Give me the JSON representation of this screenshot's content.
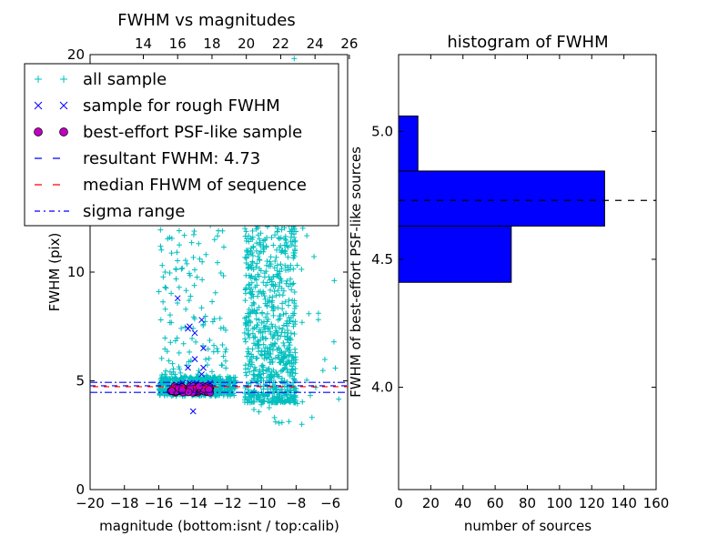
{
  "chart_data": [
    {
      "type": "scatter",
      "title": "FWHM vs magnitudes",
      "xlabel": "magnitude (bottom:isnt / top:calib)",
      "ylabel": "FWHM (pix)",
      "xlim": [
        -20,
        -5
      ],
      "ylim": [
        0,
        20
      ],
      "xticks": [
        "−20",
        "−18",
        "−16",
        "−14",
        "−12",
        "−10",
        "−8",
        "−6"
      ],
      "xtick_values": [
        -20,
        -18,
        -16,
        -14,
        -12,
        -10,
        -8,
        -6
      ],
      "top_xticks": [
        "14",
        "16",
        "18",
        "20",
        "22",
        "24",
        "26"
      ],
      "top_xtick_values": [
        -16.9,
        -14.9,
        -12.9,
        -10.9,
        -8.9,
        -6.9,
        -4.9
      ],
      "yticks": [
        "0",
        "5",
        "10",
        "20"
      ],
      "ytick_values": [
        0,
        5,
        10,
        20
      ],
      "legend_position": "upper-left",
      "series": [
        {
          "name": "all sample",
          "marker": "+",
          "color": "#00bfbf",
          "clusters": [
            {
              "x_range": [
                -16.0,
                -11.5
              ],
              "y_range": [
                4.3,
                5.2
              ],
              "count": 520
            },
            {
              "x_range": [
                -11.0,
                -8.0
              ],
              "y_range": [
                4.0,
                15.0
              ],
              "count": 900
            },
            {
              "x_range": [
                -16.0,
                -12.0
              ],
              "y_range": [
                5.0,
                13.0
              ],
              "count": 160
            },
            {
              "x_range": [
                -11.0,
                -5.5
              ],
              "y_range": [
                3.0,
                20.0
              ],
              "count": 90
            }
          ]
        },
        {
          "name": "sample for rough FWHM",
          "marker": "x",
          "color": "#0000ff",
          "points": [
            [
              -14.9,
              8.8
            ],
            [
              -14.3,
              7.4
            ],
            [
              -14.2,
              7.5
            ],
            [
              -13.9,
              7.2
            ],
            [
              -13.5,
              7.8
            ],
            [
              -13.4,
              6.5
            ],
            [
              -13.4,
              5.6
            ],
            [
              -13.5,
              5.3
            ],
            [
              -14.0,
              3.6
            ],
            [
              -15.0,
              4.8
            ],
            [
              -14.6,
              4.9
            ],
            [
              -14.2,
              4.9
            ],
            [
              -13.8,
              4.9
            ],
            [
              -13.4,
              4.8
            ],
            [
              -13.0,
              4.9
            ],
            [
              -14.3,
              5.6
            ],
            [
              -13.9,
              6.0
            ]
          ]
        },
        {
          "name": "best-effort PSF-like sample",
          "marker": "o",
          "color": "#bf00bf",
          "x_range": [
            -15.3,
            -13.0
          ],
          "y_range": [
            4.45,
            4.75
          ],
          "count": 60
        }
      ],
      "lines": [
        {
          "name": "resultant FWHM: 4.73",
          "y": 4.73,
          "style": "dashed",
          "color": "#0000ff"
        },
        {
          "name": "median FHWM of sequence",
          "y": 4.73,
          "style": "dashed",
          "color": "#ff0000"
        },
        {
          "name": "sigma range",
          "y": [
            4.47,
            4.93
          ],
          "style": "dashdot",
          "color": "#0000ff"
        }
      ]
    },
    {
      "type": "bar",
      "orientation": "horizontal",
      "title": "histogram of FWHM",
      "xlabel": "number of sources",
      "ylabel": "FWHM of best-effort PSF-like sources",
      "xlim": [
        0,
        160
      ],
      "ylim": [
        3.6,
        5.3
      ],
      "xticks": [
        "0",
        "20",
        "40",
        "60",
        "80",
        "100",
        "120",
        "140",
        "160"
      ],
      "xtick_values": [
        0,
        20,
        40,
        60,
        80,
        100,
        120,
        140,
        160
      ],
      "yticks": [
        "4.0",
        "4.5",
        "5.0"
      ],
      "ytick_values": [
        4.0,
        4.5,
        5.0
      ],
      "bar_color": "#0000ff",
      "bins": [
        {
          "from": 4.41,
          "to": 4.63,
          "count": 70
        },
        {
          "from": 4.63,
          "to": 4.845,
          "count": 128
        },
        {
          "from": 4.845,
          "to": 5.06,
          "count": 12
        }
      ],
      "reference_line": {
        "y": 4.73,
        "style": "dashed",
        "color": "#000000"
      }
    }
  ]
}
